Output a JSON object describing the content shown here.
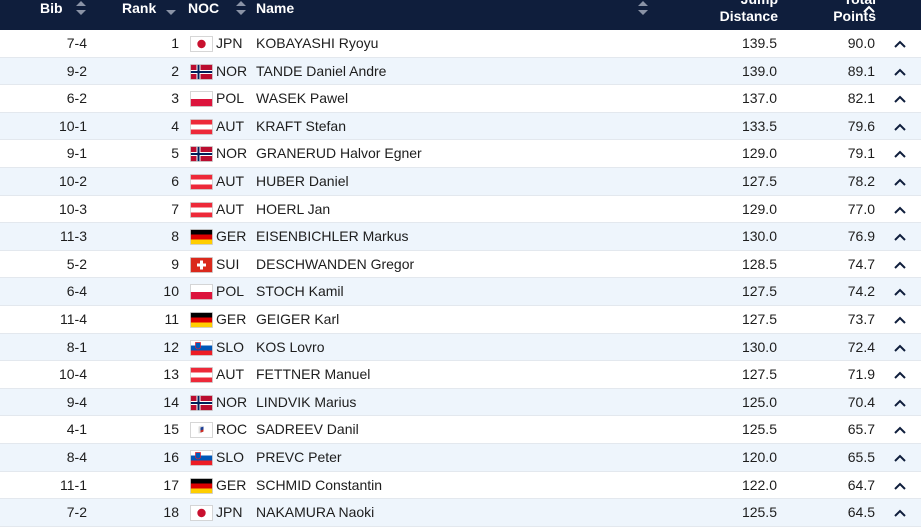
{
  "table": {
    "headers": [
      "Bib",
      "Rank",
      "NOC",
      "Name",
      "Jump Distance",
      "Total Points"
    ],
    "rows": [
      [
        "7-4",
        "1",
        "JPN",
        "KOBAYASHI Ryoyu",
        "139.5",
        "90.0"
      ],
      [
        "9-2",
        "2",
        "NOR",
        "TANDE Daniel Andre",
        "139.0",
        "89.1"
      ],
      [
        "6-2",
        "3",
        "POL",
        "WASEK Pawel",
        "137.0",
        "82.1"
      ],
      [
        "10-1",
        "4",
        "AUT",
        "KRAFT Stefan",
        "133.5",
        "79.6"
      ],
      [
        "9-1",
        "5",
        "NOR",
        "GRANERUD Halvor Egner",
        "129.0",
        "79.1"
      ],
      [
        "10-2",
        "6",
        "AUT",
        "HUBER Daniel",
        "127.5",
        "78.2"
      ],
      [
        "10-3",
        "7",
        "AUT",
        "HOERL Jan",
        "129.0",
        "77.0"
      ],
      [
        "11-3",
        "8",
        "GER",
        "EISENBICHLER Markus",
        "130.0",
        "76.9"
      ],
      [
        "5-2",
        "9",
        "SUI",
        "DESCHWANDEN Gregor",
        "128.5",
        "74.7"
      ],
      [
        "6-4",
        "10",
        "POL",
        "STOCH Kamil",
        "127.5",
        "74.2"
      ],
      [
        "11-4",
        "11",
        "GER",
        "GEIGER Karl",
        "127.5",
        "73.7"
      ],
      [
        "8-1",
        "12",
        "SLO",
        "KOS Lovro",
        "130.0",
        "72.4"
      ],
      [
        "10-4",
        "13",
        "AUT",
        "FETTNER Manuel",
        "127.5",
        "71.9"
      ],
      [
        "9-4",
        "14",
        "NOR",
        "LINDVIK Marius",
        "125.0",
        "70.4"
      ],
      [
        "4-1",
        "15",
        "ROC",
        "SADREEV Danil",
        "125.5",
        "65.7"
      ],
      [
        "8-4",
        "16",
        "SLO",
        "PREVC Peter",
        "120.0",
        "65.5"
      ],
      [
        "11-1",
        "17",
        "GER",
        "SCHMID Constantin",
        "122.0",
        "64.7"
      ],
      [
        "7-2",
        "18",
        "JPN",
        "NAKAMURA Naoki",
        "125.5",
        "64.5"
      ]
    ]
  }
}
